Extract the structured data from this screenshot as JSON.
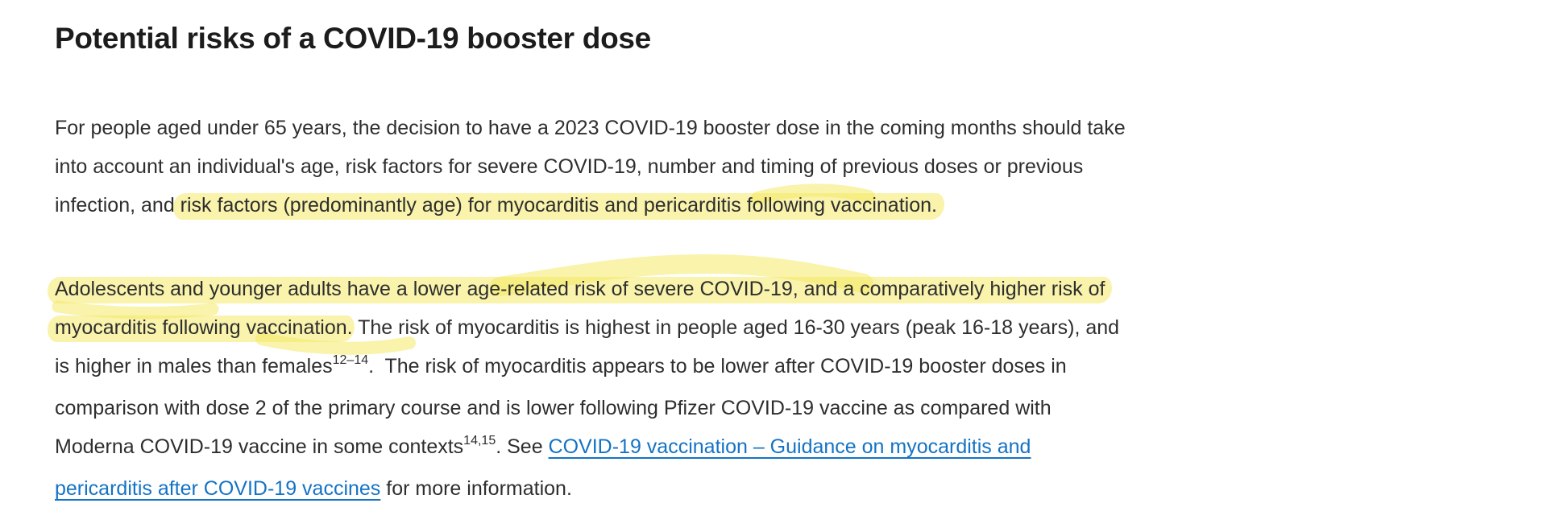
{
  "heading": "Potential risks of a COVID-19 booster dose",
  "paragraphs": [
    {
      "lines": [
        [
          {
            "t": "text",
            "s": "For people aged under 65 years, the decision to have a 2023 COVID-19 booster dose in the coming months should take"
          }
        ],
        [
          {
            "t": "text",
            "s": "into account an individual's age, risk factors for severe COVID-19, number and timing of previous doses or previous"
          }
        ],
        [
          {
            "t": "text",
            "s": "infection, and "
          },
          {
            "t": "hl",
            "s": "risk factors (predominantly age) for myocarditis and pericarditis following vaccination."
          }
        ]
      ]
    },
    {
      "lines": [
        [
          {
            "t": "hl",
            "s": "Adolescents and younger adults have a lower age-related risk of severe COVID-19, and a comparatively higher risk of"
          }
        ],
        [
          {
            "t": "hl",
            "s": "myocarditis following vaccination"
          },
          {
            "t": "text",
            "s": ". The risk of myocarditis is highest in people aged 16-30 years (peak 16-18 years), and"
          }
        ],
        [
          {
            "t": "text",
            "s": "is higher in males than females"
          },
          {
            "t": "sup",
            "s": "12–14"
          },
          {
            "t": "text",
            "s": ".  The risk of myocarditis appears to be lower after COVID-19 booster doses in"
          }
        ],
        [
          {
            "t": "text",
            "s": "comparison with dose 2 of the primary course and is lower following Pfizer COVID-19 vaccine as compared with"
          }
        ],
        [
          {
            "t": "text",
            "s": "Moderna COVID-19 vaccine in some contexts"
          },
          {
            "t": "sup",
            "s": "14,15"
          },
          {
            "t": "text",
            "s": ". See "
          },
          {
            "t": "link",
            "s": "COVID-19 vaccination – Guidance on myocarditis and"
          }
        ],
        [
          {
            "t": "link",
            "s": "pericarditis after COVID-19 vaccines"
          },
          {
            "t": "text",
            "s": " for more information."
          }
        ]
      ]
    }
  ],
  "link_name": "guidance-on-myocarditis-link",
  "colors": {
    "heading": "#1C1C1C",
    "body_text": "#2E2E2E",
    "link": "#1473C5",
    "highlight": "#F4E85A",
    "background": "#FFFFFF"
  }
}
